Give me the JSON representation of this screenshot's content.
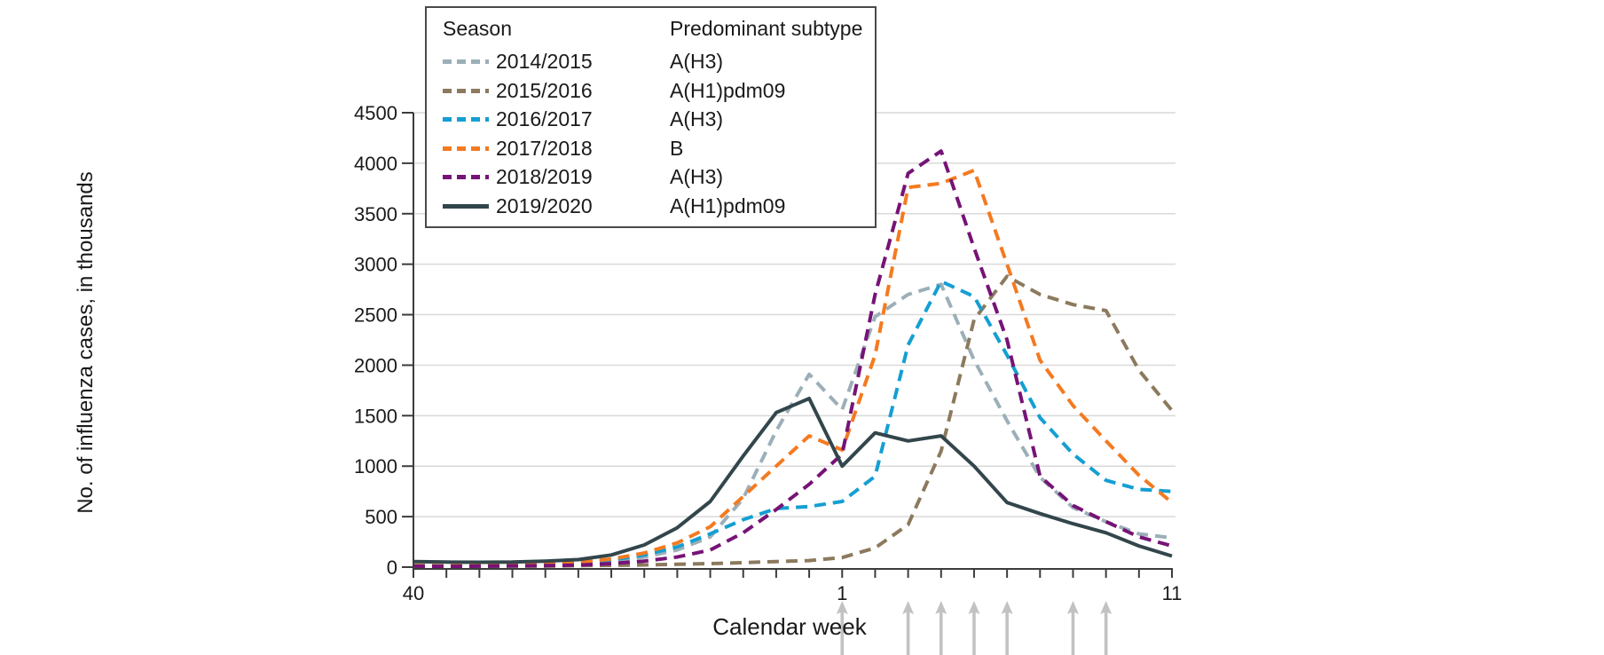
{
  "figure": {
    "y_axis_title": "No. of influenza cases, in thousands",
    "x_axis_title": "Calendar week"
  },
  "legend": {
    "season_header": "Season",
    "subtype_header": "Predominant subtype",
    "rows": [
      {
        "season": "2014/2015",
        "subtype": "A(H3)",
        "color": "#9CAFB8",
        "style": "dashed"
      },
      {
        "season": "2015/2016",
        "subtype": "A(H1)pdm09",
        "color": "#8C7A5E",
        "style": "dashed"
      },
      {
        "season": "2016/2017",
        "subtype": "A(H3)",
        "color": "#149FD3",
        "style": "dashed"
      },
      {
        "season": "2017/2018",
        "subtype": "B",
        "color": "#F47A20",
        "style": "dashed"
      },
      {
        "season": "2018/2019",
        "subtype": "A(H3)",
        "color": "#761376",
        "style": "dashed"
      },
      {
        "season": "2019/2020",
        "subtype": "A(H1)pdm09",
        "color": "#32464B",
        "style": "solid"
      }
    ]
  },
  "chart_data": {
    "type": "line",
    "title": "",
    "xlabel": "Calendar week",
    "ylabel": "No. of influenza cases, in thousands",
    "ylim": [
      0,
      4500
    ],
    "y_ticks": [
      0,
      500,
      1000,
      1500,
      2000,
      2500,
      3000,
      3500,
      4000,
      4500
    ],
    "grid": "horizontal",
    "legend_position": "top-left-box",
    "x_categories": [
      "40",
      "41",
      "42",
      "43",
      "44",
      "45",
      "46",
      "47",
      "48",
      "49",
      "50",
      "51",
      "52",
      "1",
      "2",
      "3",
      "4",
      "5",
      "6",
      "7",
      "8",
      "9",
      "10",
      "11"
    ],
    "x_ticks_shown": [
      {
        "index": 0,
        "label": "40"
      },
      {
        "index": 13,
        "label": "1"
      },
      {
        "index": 23,
        "label": "11"
      }
    ],
    "series": [
      {
        "name": "2014/2015",
        "subtype": "A(H3)",
        "style": "dashed",
        "color": "#9CAFB8",
        "values": [
          20,
          15,
          15,
          20,
          30,
          40,
          60,
          100,
          170,
          300,
          680,
          1350,
          1910,
          1560,
          2480,
          2700,
          2800,
          2050,
          1450,
          890,
          590,
          450,
          330,
          290
        ]
      },
      {
        "name": "2015/2016",
        "subtype": "A(H1)pdm09",
        "style": "dashed",
        "color": "#8C7A5E",
        "values": [
          10,
          8,
          8,
          10,
          10,
          15,
          18,
          22,
          28,
          35,
          45,
          55,
          65,
          95,
          190,
          420,
          1150,
          2450,
          2880,
          2700,
          2600,
          2540,
          1950,
          1550
        ]
      },
      {
        "name": "2016/2017",
        "subtype": "A(H3)",
        "style": "dashed",
        "color": "#149FD3",
        "values": [
          15,
          12,
          15,
          20,
          30,
          45,
          70,
          120,
          200,
          330,
          470,
          580,
          600,
          650,
          900,
          2200,
          2830,
          2680,
          2100,
          1480,
          1120,
          860,
          770,
          750
        ]
      },
      {
        "name": "2017/2018",
        "subtype": "B",
        "style": "dashed",
        "color": "#F47A20",
        "values": [
          15,
          12,
          15,
          20,
          30,
          50,
          80,
          140,
          240,
          400,
          700,
          1000,
          1300,
          1160,
          2100,
          3760,
          3800,
          3930,
          3000,
          2050,
          1600,
          1250,
          910,
          640
        ]
      },
      {
        "name": "2018/2019",
        "subtype": "A(H3)",
        "style": "dashed",
        "color": "#761376",
        "values": [
          10,
          8,
          10,
          12,
          15,
          20,
          35,
          60,
          100,
          170,
          340,
          570,
          820,
          1120,
          2700,
          3900,
          4120,
          3160,
          2250,
          900,
          610,
          450,
          300,
          210
        ]
      },
      {
        "name": "2019/2020",
        "subtype": "A(H1)pdm09",
        "style": "solid",
        "color": "#32464B",
        "values": [
          55,
          50,
          48,
          50,
          60,
          75,
          120,
          220,
          390,
          650,
          1100,
          1530,
          1670,
          1000,
          1330,
          1250,
          1300,
          1000,
          640,
          530,
          430,
          340,
          210,
          110
        ]
      }
    ],
    "arrow_weeks": [
      "1",
      "3",
      "4",
      "5",
      "6",
      "8",
      "9"
    ],
    "colors": {
      "grid": "#D9D9D9",
      "axis": "#3C3C3C",
      "arrow": "#C2C2C2",
      "text": "#1A1A1A"
    }
  }
}
